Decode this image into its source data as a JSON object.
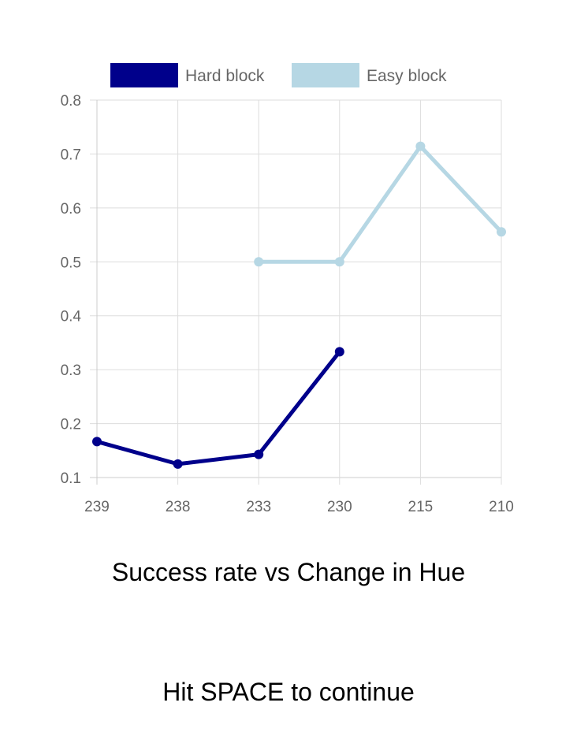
{
  "chart_data": {
    "type": "line",
    "title": "Success rate vs Change in Hue",
    "xlabel": "",
    "ylabel": "",
    "categories": [
      "239",
      "238",
      "233",
      "230",
      "215",
      "210"
    ],
    "ylim": [
      0.1,
      0.8
    ],
    "yticks": [
      "0.1",
      "0.2",
      "0.3",
      "0.4",
      "0.5",
      "0.6",
      "0.7",
      "0.8"
    ],
    "grid": true,
    "legend_position": "top",
    "series": [
      {
        "name": "Hard block",
        "color": "#00008b",
        "values": [
          0.1667,
          0.125,
          0.1429,
          0.3333,
          null,
          null
        ]
      },
      {
        "name": "Easy block",
        "color": "#b6d7e4",
        "values": [
          null,
          null,
          0.5,
          0.5,
          0.7143,
          0.5556
        ]
      }
    ]
  },
  "prompt": {
    "continue_text": "Hit SPACE to continue"
  },
  "colors": {
    "grid": "#dddddd",
    "axis": "#cccccc",
    "tick_text": "#666666"
  }
}
